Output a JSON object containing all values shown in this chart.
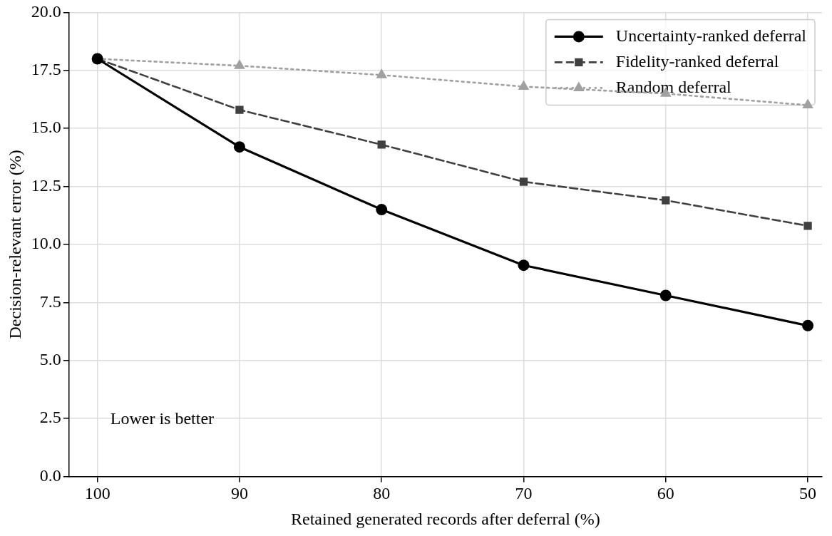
{
  "chart_data": {
    "type": "line",
    "xlabel": "Retained generated records after deferral (%)",
    "ylabel": "Decision-relevant error (%)",
    "x": [
      100,
      90,
      80,
      70,
      60,
      50
    ],
    "xlim": [
      102,
      49
    ],
    "xticks": [
      100,
      90,
      80,
      70,
      60,
      50
    ],
    "ylim": [
      0,
      20
    ],
    "yticks": [
      {
        "value": 0,
        "label": "0.0"
      },
      {
        "value": 2.5,
        "label": "2.5"
      },
      {
        "value": 5,
        "label": "5.0"
      },
      {
        "value": 7.5,
        "label": "7.5"
      },
      {
        "value": 10,
        "label": "10.0"
      },
      {
        "value": 12.5,
        "label": "12.5"
      },
      {
        "value": 15,
        "label": "15.0"
      },
      {
        "value": 17.5,
        "label": "17.5"
      },
      {
        "value": 20,
        "label": "20.0"
      }
    ],
    "grid": true,
    "legend": "top right",
    "series": [
      {
        "name": "Uncertainty-ranked deferral",
        "color": "#000000",
        "marker": "circle",
        "line_style": "solid",
        "values": [
          18.0,
          14.2,
          11.5,
          9.1,
          7.8,
          6.5
        ]
      },
      {
        "name": "Fidelity-ranked deferral",
        "color": "#404040",
        "marker": "square",
        "line_style": "dashed",
        "values": [
          18.0,
          15.8,
          14.3,
          12.7,
          11.9,
          10.8
        ]
      },
      {
        "name": "Random deferral",
        "color": "#a0a0a0",
        "marker": "triangle",
        "line_style": "dotted",
        "values": [
          18.0,
          17.7,
          17.3,
          16.8,
          16.5,
          16.0
        ]
      }
    ],
    "annotations": [
      "Lower is better"
    ]
  }
}
